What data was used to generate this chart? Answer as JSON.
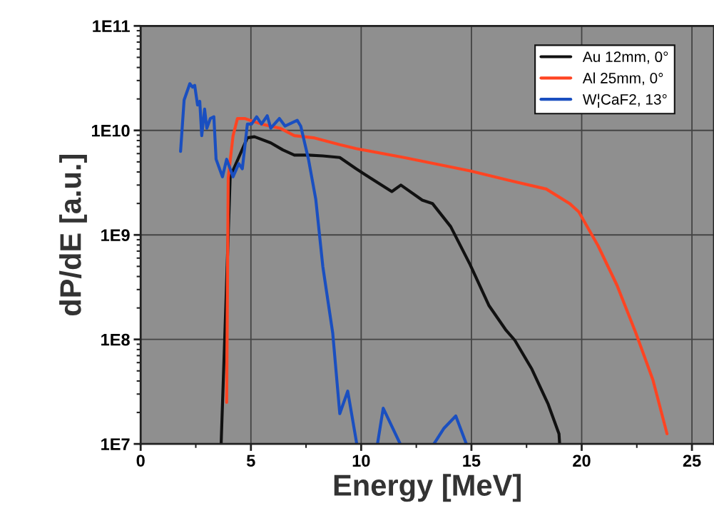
{
  "chart_data": {
    "type": "line",
    "xlabel": "Energy [MeV]",
    "ylabel": "dP/dE [a.u.]",
    "xlim": [
      0,
      26
    ],
    "xticks": [
      0,
      5,
      10,
      15,
      20,
      25
    ],
    "ylim": [
      10000000.0,
      100000000000.0
    ],
    "yticks": [
      {
        "value": 10000000.0,
        "label": "1E7"
      },
      {
        "value": 100000000.0,
        "label": "1E8"
      },
      {
        "value": 1000000000.0,
        "label": "1E9"
      },
      {
        "value": 10000000000.0,
        "label": "1E10"
      },
      {
        "value": 100000000000.0,
        "label": "1E11"
      }
    ],
    "log": "y",
    "grid": true,
    "legend": "top right",
    "marker": "none",
    "line_style": "solid",
    "series": [
      {
        "name": "Au 12mm, 0°",
        "color": "#111111",
        "x": [
          3.65,
          4.06,
          4.84,
          5.16,
          5.9,
          6.45,
          6.97,
          7.6,
          8.26,
          9.03,
          9.77,
          10.42,
          11.39,
          11.8,
          12.77,
          13.23,
          14.06,
          14.94,
          15.8,
          16.55,
          16.97,
          17.74,
          18.48,
          18.97,
          19.0
        ],
        "values": [
          10000000.0,
          3600000000.0,
          8500000000.0,
          8700000000.0,
          7600000000.0,
          6500000000.0,
          5800000000.0,
          5800000000.0,
          5700000000.0,
          5500000000.0,
          4300000000.0,
          3500000000.0,
          2600000000.0,
          3000000000.0,
          2150000000.0,
          2000000000.0,
          1200000000.0,
          520000000.0,
          210000000.0,
          124000000.0,
          98000000.0,
          52000000.0,
          24000000.0,
          12500000.0,
          10000000.0
        ]
      },
      {
        "name": "Al 25mm, 0°",
        "color": "#ff4422",
        "x": [
          3.9,
          3.97,
          4.19,
          4.39,
          4.71,
          5.48,
          6.32,
          6.97,
          7.84,
          9.03,
          9.77,
          11.94,
          14.94,
          16.77,
          18.39,
          19.45,
          19.87,
          20.74,
          21.6,
          22.45,
          23.23,
          23.87
        ],
        "values": [
          25000000.0,
          3500000000.0,
          8900000000.0,
          13000000000.0,
          13000000000.0,
          11500000000.0,
          10500000000.0,
          8900000000.0,
          8500000000.0,
          7300000000.0,
          6700000000.0,
          5500000000.0,
          4100000000.0,
          3300000000.0,
          2750000000.0,
          2000000000.0,
          1660000000.0,
          790000000.0,
          330000000.0,
          116000000.0,
          41000000.0,
          12500000.0
        ]
      },
      {
        "name": "W¦CaF2, 13°",
        "color": "#1a4fc0",
        "x": [
          1.81,
          1.97,
          2.23,
          2.35,
          2.45,
          2.58,
          2.68,
          2.77,
          2.9,
          3.0,
          3.16,
          3.32,
          3.42,
          3.71,
          3.9,
          4.19,
          4.45,
          4.61,
          4.84,
          5.03,
          5.26,
          5.48,
          5.74,
          5.9,
          6.29,
          6.55,
          7.1,
          7.26,
          7.61,
          7.94,
          8.26,
          8.71,
          9.03,
          9.39,
          9.8,
          10.2,
          10.74,
          11.0,
          11.77,
          12.5,
          13.3,
          13.74,
          14.29,
          14.77
        ],
        "values": [
          6300000000.0,
          19500000000.0,
          28000000000.0,
          26000000000.0,
          27000000000.0,
          17500000000.0,
          19000000000.0,
          8900000000.0,
          16000000000.0,
          10500000000.0,
          13000000000.0,
          13500000000.0,
          5300000000.0,
          3600000000.0,
          5300000000.0,
          3600000000.0,
          4800000000.0,
          4300000000.0,
          11500000000.0,
          11500000000.0,
          13500000000.0,
          11500000000.0,
          13800000000.0,
          10500000000.0,
          13000000000.0,
          11000000000.0,
          12500000000.0,
          11000000000.0,
          5300000000.0,
          2200000000.0,
          500000000.0,
          115000000.0,
          19500000.0,
          32000000.0,
          10000000.0,
          null,
          10000000.0,
          22000000.0,
          10000000.0,
          null,
          10000000.0,
          14000000.0,
          18500000.0,
          10000000.0
        ]
      }
    ]
  }
}
